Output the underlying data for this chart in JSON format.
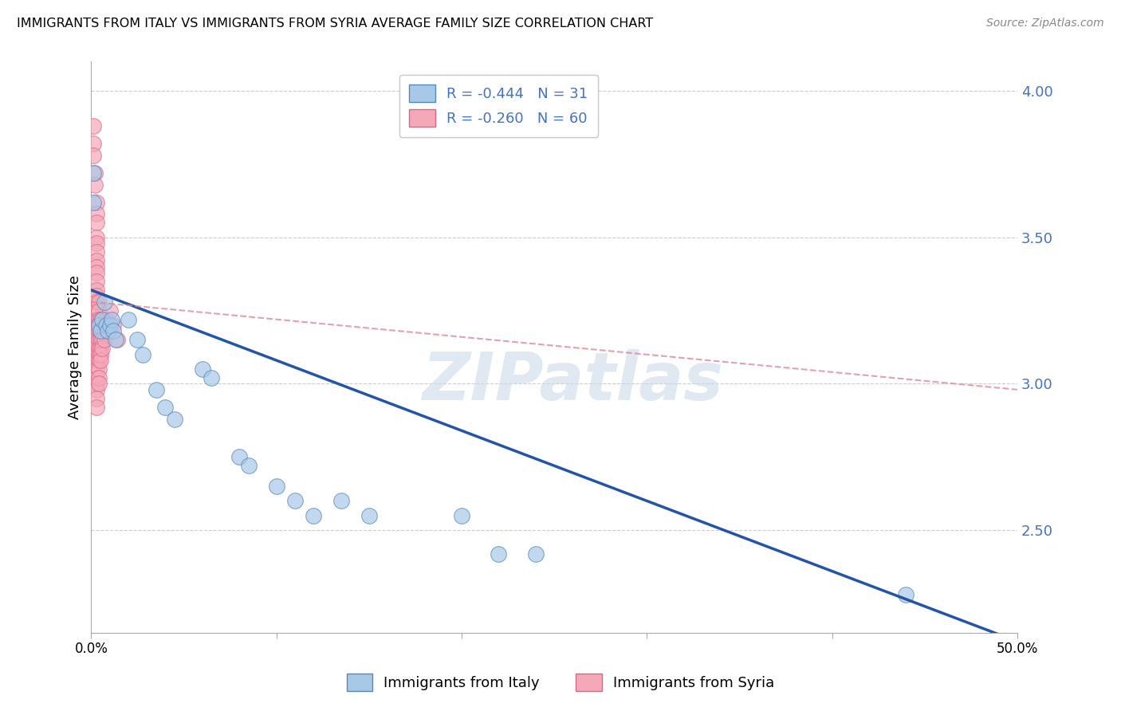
{
  "title": "IMMIGRANTS FROM ITALY VS IMMIGRANTS FROM SYRIA AVERAGE FAMILY SIZE CORRELATION CHART",
  "source": "Source: ZipAtlas.com",
  "ylabel": "Average Family Size",
  "xlim": [
    0.0,
    0.5
  ],
  "ylim": [
    2.15,
    4.1
  ],
  "yticks": [
    2.5,
    3.0,
    3.5,
    4.0
  ],
  "xticks": [
    0.0,
    0.1,
    0.2,
    0.3,
    0.4,
    0.5
  ],
  "xtick_labels": [
    "0.0%",
    "",
    "",
    "",
    "",
    "50.0%"
  ],
  "italy_color": "#a8c8e8",
  "syria_color": "#f4a8b8",
  "italy_edge": "#5588bb",
  "syria_edge": "#dd6688",
  "italy_line_color": "#2255aa",
  "syria_line_color": "#dd8899",
  "italy_r": -0.444,
  "italy_n": 31,
  "syria_r": -0.26,
  "syria_n": 60,
  "legend_label_italy": "Immigrants from Italy",
  "legend_label_syria": "Immigrants from Syria",
  "watermark": "ZIPatlas",
  "italy_scatter": [
    [
      0.001,
      3.62
    ],
    [
      0.001,
      3.72
    ],
    [
      0.004,
      3.2
    ],
    [
      0.005,
      3.18
    ],
    [
      0.006,
      3.22
    ],
    [
      0.007,
      3.28
    ],
    [
      0.008,
      3.2
    ],
    [
      0.009,
      3.18
    ],
    [
      0.01,
      3.2
    ],
    [
      0.011,
      3.22
    ],
    [
      0.012,
      3.18
    ],
    [
      0.013,
      3.15
    ],
    [
      0.02,
      3.22
    ],
    [
      0.025,
      3.15
    ],
    [
      0.028,
      3.1
    ],
    [
      0.035,
      2.98
    ],
    [
      0.04,
      2.92
    ],
    [
      0.045,
      2.88
    ],
    [
      0.06,
      3.05
    ],
    [
      0.065,
      3.02
    ],
    [
      0.08,
      2.75
    ],
    [
      0.085,
      2.72
    ],
    [
      0.1,
      2.65
    ],
    [
      0.11,
      2.6
    ],
    [
      0.12,
      2.55
    ],
    [
      0.135,
      2.6
    ],
    [
      0.15,
      2.55
    ],
    [
      0.2,
      2.55
    ],
    [
      0.22,
      2.42
    ],
    [
      0.24,
      2.42
    ],
    [
      0.44,
      2.28
    ]
  ],
  "syria_scatter": [
    [
      0.001,
      3.88
    ],
    [
      0.001,
      3.82
    ],
    [
      0.001,
      3.78
    ],
    [
      0.002,
      3.72
    ],
    [
      0.002,
      3.68
    ],
    [
      0.003,
      3.62
    ],
    [
      0.003,
      3.58
    ],
    [
      0.003,
      3.55
    ],
    [
      0.003,
      3.5
    ],
    [
      0.003,
      3.48
    ],
    [
      0.003,
      3.45
    ],
    [
      0.003,
      3.42
    ],
    [
      0.003,
      3.4
    ],
    [
      0.003,
      3.38
    ],
    [
      0.003,
      3.35
    ],
    [
      0.003,
      3.32
    ],
    [
      0.003,
      3.3
    ],
    [
      0.003,
      3.28
    ],
    [
      0.003,
      3.25
    ],
    [
      0.003,
      3.22
    ],
    [
      0.003,
      3.2
    ],
    [
      0.003,
      3.18
    ],
    [
      0.003,
      3.15
    ],
    [
      0.003,
      3.12
    ],
    [
      0.003,
      3.1
    ],
    [
      0.003,
      3.08
    ],
    [
      0.003,
      3.05
    ],
    [
      0.003,
      3.02
    ],
    [
      0.003,
      3.0
    ],
    [
      0.003,
      2.98
    ],
    [
      0.003,
      2.95
    ],
    [
      0.003,
      2.92
    ],
    [
      0.004,
      3.28
    ],
    [
      0.004,
      3.25
    ],
    [
      0.004,
      3.22
    ],
    [
      0.004,
      3.2
    ],
    [
      0.004,
      3.18
    ],
    [
      0.004,
      3.15
    ],
    [
      0.004,
      3.12
    ],
    [
      0.004,
      3.1
    ],
    [
      0.004,
      3.08
    ],
    [
      0.004,
      3.05
    ],
    [
      0.004,
      3.02
    ],
    [
      0.004,
      3.0
    ],
    [
      0.005,
      3.22
    ],
    [
      0.005,
      3.18
    ],
    [
      0.005,
      3.15
    ],
    [
      0.005,
      3.12
    ],
    [
      0.005,
      3.1
    ],
    [
      0.005,
      3.08
    ],
    [
      0.006,
      3.18
    ],
    [
      0.006,
      3.15
    ],
    [
      0.006,
      3.12
    ],
    [
      0.007,
      3.18
    ],
    [
      0.007,
      3.15
    ],
    [
      0.008,
      3.22
    ],
    [
      0.009,
      3.18
    ],
    [
      0.01,
      3.25
    ],
    [
      0.012,
      3.2
    ],
    [
      0.014,
      3.15
    ]
  ],
  "italy_trendline": [
    [
      0.0,
      3.32
    ],
    [
      0.5,
      2.12
    ]
  ],
  "syria_trendline": [
    [
      0.0,
      3.28
    ],
    [
      0.5,
      2.98
    ]
  ],
  "background_color": "#ffffff",
  "grid_color": "#cccccc",
  "label_color": "#4472c4",
  "title_color": "#000000"
}
